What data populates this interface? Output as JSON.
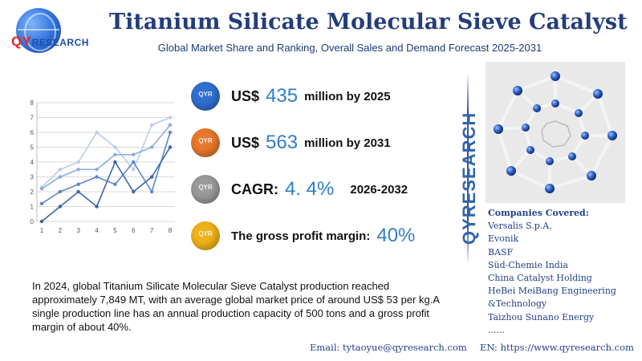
{
  "logo": {
    "q": "QY",
    "rest": "RESEARCH"
  },
  "header": {
    "title": "Titanium Silicate Molecular Sieve Catalyst",
    "subtitle": "Global Market Share and Ranking, Overall Sales and Demand Forecast 2025-2031"
  },
  "chart_data": {
    "type": "line",
    "x": [
      1,
      2,
      3,
      4,
      5,
      6,
      7,
      8
    ],
    "ylim": [
      0,
      8
    ],
    "yticks": [
      0,
      1,
      2,
      3,
      4,
      5,
      6,
      7,
      8
    ],
    "grid": true,
    "series": [
      {
        "color": "#b9cde8",
        "values": [
          2.3,
          3.5,
          4,
          6,
          5,
          3.5,
          6.5,
          7
        ]
      },
      {
        "color": "#8aacdc",
        "values": [
          2.2,
          3,
          3.5,
          3.5,
          4.5,
          4.5,
          5,
          6.5
        ]
      },
      {
        "color": "#5d87c8",
        "values": [
          1.2,
          2,
          2.5,
          3,
          2.5,
          4,
          2,
          6
        ]
      },
      {
        "color": "#3a64ad",
        "values": [
          0,
          1,
          2,
          1,
          4,
          2,
          3,
          5
        ]
      }
    ]
  },
  "metrics": [
    {
      "icon": "globe-icon-blue",
      "color": "#2f6fcf",
      "prefix": "US$",
      "value": "435",
      "suffix": "million by 2025"
    },
    {
      "icon": "globe-icon-orange",
      "color": "#e8782c",
      "prefix": "US$",
      "value": "563",
      "suffix": "million by 2031"
    },
    {
      "icon": "globe-icon-gray",
      "color": "#9a9a9a",
      "prefix": "CAGR:",
      "value": "4. 4%",
      "suffix": "2026-2032"
    },
    {
      "icon": "globe-icon-yellow",
      "color": "#f0b21a",
      "prefix": "The gross profit margin:",
      "value": "40%",
      "suffix": ""
    }
  ],
  "brand_vertical": "QYRESEARCH",
  "companies": {
    "title": "Companies Covered:",
    "items": [
      "Versalis S.p.A.",
      "Evonik",
      "BASF",
      "Süd-Chemie India",
      "China Catalyst Holding",
      "HeBei MeiBang Engineering",
      "&Technology",
      "Taizhou Sunano Energy",
      "......"
    ]
  },
  "description": "In 2024, global Titanium Silicate Molecular Sieve Catalyst production reached approximately 7,849 MT, with an average global market price of around US$ 53 per kg.A single production line has an annual production capacity of 500 tons and a gross profit margin of about 40%.",
  "footer": {
    "email": "Email:  tytaoyue@qyresearch.com",
    "web": "EN: https://www.qyresearch.com"
  }
}
